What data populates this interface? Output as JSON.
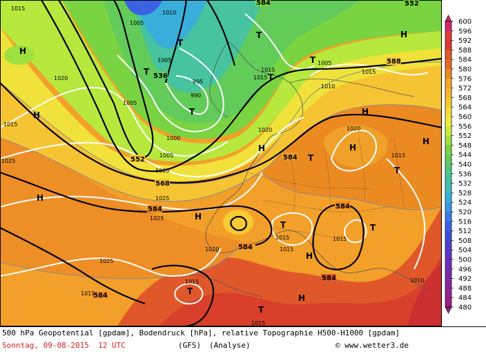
{
  "footer": {
    "line1": "500 hPa Geopotential [gpdam], Bodendruck [hPa], relative Topographie H500-H1000 [gpdam]",
    "date": "Sonntag, 09-08-2015  12 UTC",
    "model": "(GFS)",
    "analysis": "(Analyse)",
    "copyright": "© www.wetter3.de"
  },
  "legend": {
    "values": [
      "600",
      "596",
      "592",
      "588",
      "584",
      "580",
      "576",
      "572",
      "568",
      "564",
      "560",
      "556",
      "552",
      "548",
      "544",
      "540",
      "536",
      "532",
      "528",
      "524",
      "520",
      "516",
      "512",
      "508",
      "504",
      "500",
      "496",
      "492",
      "488",
      "484",
      "480"
    ],
    "colors": [
      "#d4286e",
      "#e23a3a",
      "#d93a30",
      "#e25a28",
      "#e46a2a",
      "#ec8a22",
      "#f3a62a",
      "#f5b52f",
      "#f6ca32",
      "#f4dc3a",
      "#eaee3e",
      "#c9ec3e",
      "#9ee13f",
      "#7ad441",
      "#62cb5a",
      "#52c67f",
      "#47c39f",
      "#3fbfbe",
      "#3aaedb",
      "#3a96e6",
      "#3a7be8",
      "#3a62e2",
      "#3f4ed8",
      "#4a40cc",
      "#5a37c2",
      "#6b31b6",
      "#7b2caa",
      "#87289e",
      "#922392",
      "#9c1f86",
      "#a51b7a"
    ]
  },
  "map": {
    "low_markers": [
      "T",
      "T",
      "T",
      "T",
      "T",
      "T",
      "T",
      "T",
      "T",
      "T",
      "T",
      "T"
    ],
    "high_markers": [
      "H",
      "H",
      "H",
      "H",
      "H",
      "H",
      "H",
      "H",
      "H",
      "H",
      "H"
    ],
    "geopotential_labels": [
      "552",
      "536",
      "552",
      "568",
      "584",
      "584",
      "584",
      "584",
      "584",
      "584",
      "588",
      "584"
    ],
    "pressure_labels": [
      "1015",
      "1010",
      "1005",
      "1005",
      "1005",
      "995",
      "990",
      "1000",
      "1005",
      "1020",
      "1015",
      "1025",
      "1020",
      "1025",
      "1020",
      "1025",
      "1015",
      "1015",
      "1015",
      "1020",
      "1015",
      "1015",
      "1015",
      "1005",
      "1010",
      "1015",
      "1010",
      "1015",
      "1015",
      "1015",
      "1025",
      "1020"
    ]
  }
}
